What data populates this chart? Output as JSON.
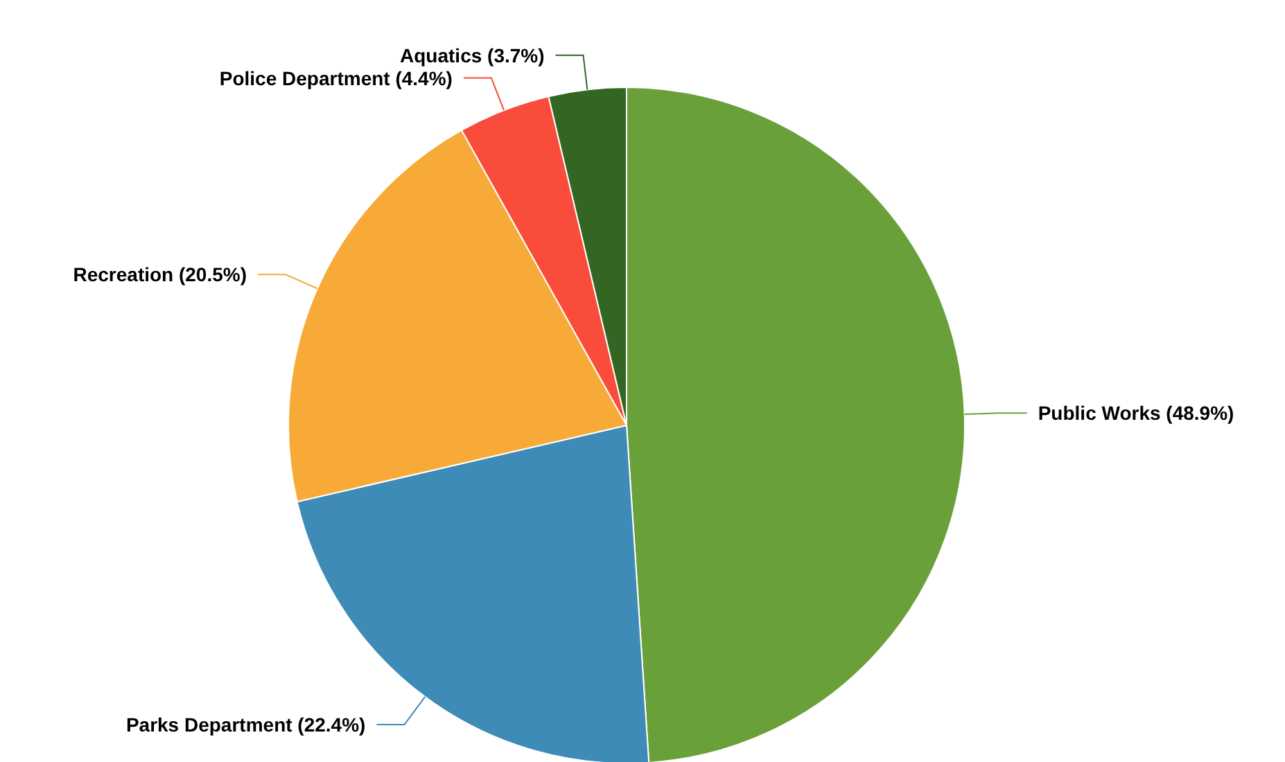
{
  "chart_data": {
    "type": "pie",
    "categories": [
      "Public Works",
      "Parks Department",
      "Recreation",
      "Police Department",
      "Aquatics"
    ],
    "values": [
      48.9,
      22.4,
      20.5,
      4.4,
      3.7
    ],
    "value_labels": [
      "(48.9%)",
      "(22.4%)",
      "(20.5%)",
      "(4.4%)",
      "(3.7%)"
    ],
    "colors": [
      "#6aa03a",
      "#3d8bb6",
      "#f7aa38",
      "#f94c3a",
      "#336622"
    ]
  }
}
